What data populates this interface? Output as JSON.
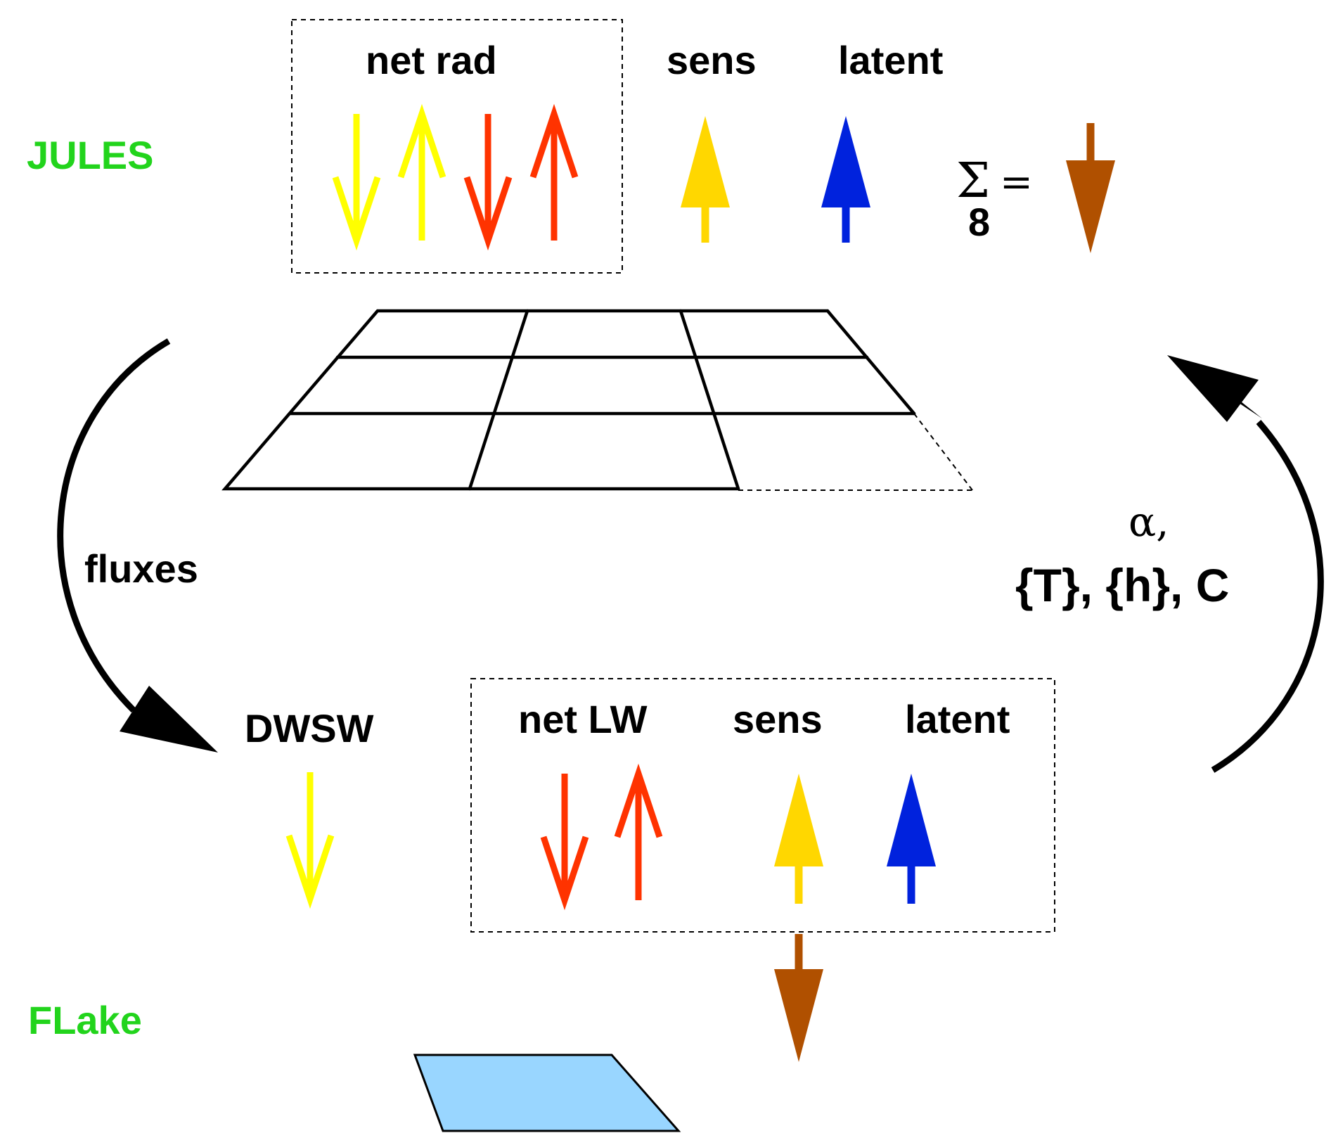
{
  "models": {
    "top": "JULES",
    "bottom": "FLake"
  },
  "jules": {
    "net_rad": "net rad",
    "sens": "sens",
    "latent": "latent",
    "sum_symbol": "Σ",
    "sum_equals": "=",
    "sum_index": "8"
  },
  "cycle": {
    "left_label": "fluxes",
    "right_alpha": "α,",
    "right_vars": "{T}, {h}, C"
  },
  "flake": {
    "dwsw": "DWSW",
    "net_lw": "net LW",
    "sens": "sens",
    "latent": "latent"
  },
  "colors": {
    "shortwave": "#ffff00",
    "longwave": "#ff3300",
    "sensible": "#ffd700",
    "latent": "#0022dd",
    "ground_heat": "#b05000",
    "model_name": "#22d41c",
    "lake": "#99d6ff"
  }
}
